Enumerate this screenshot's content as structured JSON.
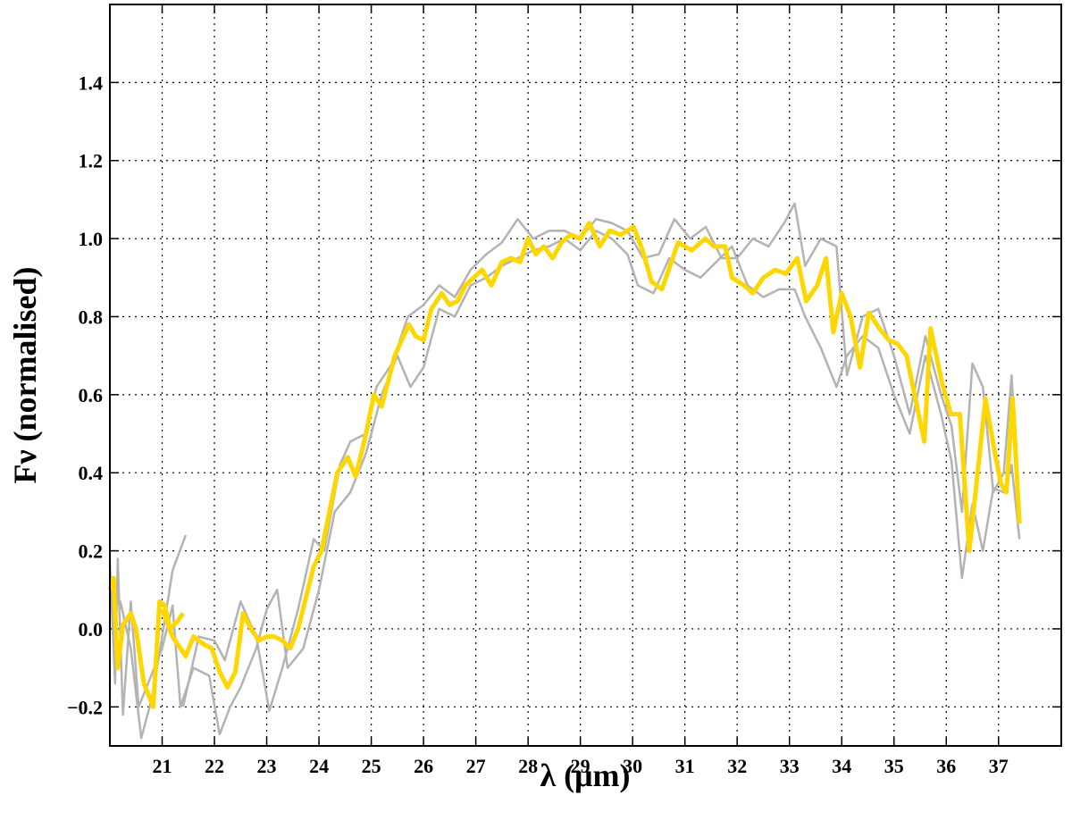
{
  "chart_data": {
    "type": "line",
    "xlabel": "λ (μm)",
    "ylabel": "Fν (normalised)",
    "xlim": [
      20.0,
      38.2
    ],
    "ylim": [
      -0.3,
      1.6
    ],
    "xticks": [
      21,
      22,
      23,
      24,
      25,
      26,
      27,
      28,
      29,
      30,
      31,
      32,
      33,
      34,
      35,
      36,
      37
    ],
    "yticks": [
      {
        "value": -0.2,
        "label": "−0.2"
      },
      {
        "value": 0,
        "label": "0.0"
      },
      0.2,
      0.4,
      0.6,
      0.8,
      {
        "value": 1,
        "label": "1.0"
      },
      1.2,
      1.4
    ],
    "grid": true,
    "series": [
      {
        "color": "#b3b3b3",
        "width": 2.5,
        "x": [
          20.0,
          20.1,
          20.15,
          20.25,
          20.4,
          20.55,
          20.7,
          20.85,
          21.0,
          21.2,
          21.35,
          21.6,
          21.9,
          22.1,
          22.3,
          22.5,
          22.8,
          23.0,
          23.2,
          23.4,
          23.7,
          24.0,
          24.3,
          24.6,
          24.9,
          25.2,
          25.5,
          25.75,
          26.0,
          26.3,
          26.6,
          26.9,
          27.2,
          27.5,
          27.8,
          28.1,
          28.4,
          28.7,
          29.0,
          29.3,
          29.6,
          29.9,
          30.1,
          30.4,
          30.7,
          31.0,
          31.3,
          31.6,
          31.9,
          32.2,
          32.5,
          32.8,
          33.1,
          33.3,
          33.6,
          33.9,
          34.1,
          34.4,
          34.7,
          35.0,
          35.3,
          35.6,
          35.9,
          36.1,
          36.3,
          36.5,
          36.7,
          36.9,
          37.1,
          37.25,
          37.4
        ],
        "values": [
          0.17,
          -0.14,
          0.18,
          -0.22,
          0.07,
          -0.2,
          -0.15,
          -0.1,
          -0.05,
          0.06,
          -0.2,
          -0.1,
          -0.12,
          -0.27,
          -0.2,
          -0.15,
          -0.05,
          0.05,
          0.1,
          -0.1,
          -0.05,
          0.1,
          0.3,
          0.35,
          0.45,
          0.6,
          0.7,
          0.62,
          0.67,
          0.82,
          0.8,
          0.88,
          0.9,
          0.93,
          0.95,
          0.97,
          0.98,
          1.0,
          0.97,
          1.02,
          1.0,
          0.96,
          0.88,
          0.86,
          0.95,
          0.92,
          0.9,
          0.94,
          0.98,
          0.88,
          0.85,
          0.87,
          0.87,
          0.8,
          0.72,
          0.62,
          0.7,
          0.75,
          0.72,
          0.6,
          0.5,
          0.7,
          0.55,
          0.43,
          0.13,
          0.32,
          0.2,
          0.36,
          0.35,
          0.42,
          0.23
        ]
      },
      {
        "color": "#b3b3b3",
        "width": 2.5,
        "x": [
          20.0,
          20.2,
          20.4,
          20.6,
          20.8,
          21.0,
          21.2,
          21.45,
          null,
          21.4,
          21.7,
          22.0,
          22.2,
          22.5,
          22.8,
          23.05,
          23.3,
          23.6,
          23.9,
          24.1,
          24.4,
          24.6,
          24.9,
          25.1,
          25.4,
          25.7,
          26.0,
          26.3,
          26.6,
          26.9,
          27.2,
          27.5,
          27.8,
          28.1,
          28.4,
          28.7,
          29.0,
          29.3,
          29.6,
          29.9,
          30.2,
          30.5,
          30.8,
          31.1,
          31.4,
          31.7,
          32.0,
          32.3,
          32.6,
          32.9,
          33.1,
          33.3,
          33.6,
          33.9,
          34.1,
          34.4,
          34.7,
          35.0,
          35.3,
          35.6,
          35.9,
          36.1,
          36.3,
          36.5,
          36.7,
          36.9,
          37.1,
          37.25,
          37.4
        ],
        "values": [
          0.05,
          0.07,
          -0.05,
          -0.28,
          -0.18,
          -0.02,
          0.15,
          0.24,
          null,
          -0.2,
          -0.02,
          -0.03,
          -0.08,
          0.07,
          -0.02,
          -0.21,
          -0.1,
          0.05,
          0.23,
          0.2,
          0.42,
          0.48,
          0.5,
          0.62,
          0.68,
          0.8,
          0.83,
          0.88,
          0.85,
          0.92,
          0.96,
          0.99,
          1.05,
          1.0,
          1.02,
          1.02,
          1.0,
          1.05,
          1.04,
          1.02,
          0.95,
          0.96,
          1.05,
          1.0,
          1.03,
          0.95,
          0.95,
          1.0,
          0.98,
          1.04,
          1.09,
          0.93,
          1.0,
          0.98,
          0.65,
          0.8,
          0.82,
          0.7,
          0.55,
          0.75,
          0.6,
          0.52,
          0.3,
          0.68,
          0.62,
          0.35,
          0.4,
          0.65,
          0.3
        ]
      },
      {
        "color": "#ffd700",
        "width": 5,
        "x": [
          20.0,
          20.07,
          20.15,
          20.25,
          20.4,
          20.5,
          20.65,
          20.83,
          20.95,
          21.05,
          21.15,
          21.3,
          21.4,
          null,
          21.0,
          21.2,
          21.45,
          21.6,
          21.8,
          21.95,
          22.1,
          22.25,
          22.4,
          22.55,
          22.7,
          22.85,
          23.0,
          23.15,
          23.3,
          23.45,
          23.6,
          23.75,
          23.9,
          24.05,
          24.2,
          24.35,
          24.55,
          24.7,
          24.9,
          25.05,
          25.2,
          25.45,
          25.72,
          25.85,
          26.0,
          26.15,
          26.35,
          26.5,
          26.65,
          26.8,
          27.12,
          27.3,
          27.5,
          27.67,
          27.85,
          28.0,
          28.15,
          28.3,
          28.47,
          28.64,
          28.81,
          29.0,
          29.17,
          29.37,
          29.56,
          29.77,
          30.02,
          30.19,
          30.36,
          30.56,
          30.87,
          31.13,
          31.39,
          31.56,
          31.77,
          31.9,
          32.13,
          32.3,
          32.5,
          32.73,
          32.93,
          33.15,
          33.32,
          33.53,
          33.7,
          33.84,
          34.0,
          34.17,
          34.35,
          34.52,
          34.72,
          34.9,
          35.07,
          35.24,
          35.44,
          35.58,
          35.7,
          35.92,
          36.09,
          36.26,
          36.44,
          36.6,
          36.75,
          36.93,
          37.05,
          37.15,
          37.27,
          37.4
        ],
        "values": [
          0.1,
          0.13,
          -0.1,
          0.01,
          0.04,
          0.0,
          -0.14,
          -0.2,
          0.07,
          0.06,
          0.0,
          0.02,
          0.04,
          null,
          0.05,
          -0.02,
          -0.07,
          -0.02,
          -0.04,
          -0.05,
          -0.11,
          -0.15,
          -0.11,
          0.04,
          0.0,
          -0.03,
          -0.02,
          -0.02,
          -0.03,
          -0.05,
          0.0,
          0.08,
          0.16,
          0.2,
          0.3,
          0.4,
          0.44,
          0.39,
          0.5,
          0.6,
          0.57,
          0.7,
          0.78,
          0.75,
          0.74,
          0.82,
          0.86,
          0.83,
          0.84,
          0.88,
          0.92,
          0.88,
          0.94,
          0.95,
          0.94,
          1.0,
          0.96,
          0.98,
          0.95,
          0.99,
          1.01,
          1.0,
          1.04,
          0.98,
          1.02,
          1.01,
          1.03,
          0.97,
          0.89,
          0.87,
          0.99,
          0.97,
          1.0,
          0.98,
          0.98,
          0.9,
          0.88,
          0.86,
          0.9,
          0.92,
          0.91,
          0.95,
          0.84,
          0.88,
          0.95,
          0.76,
          0.86,
          0.8,
          0.67,
          0.81,
          0.77,
          0.74,
          0.73,
          0.7,
          0.57,
          0.48,
          0.77,
          0.63,
          0.55,
          0.55,
          0.2,
          0.4,
          0.59,
          0.45,
          0.37,
          0.35,
          0.59,
          0.27
        ]
      }
    ]
  }
}
